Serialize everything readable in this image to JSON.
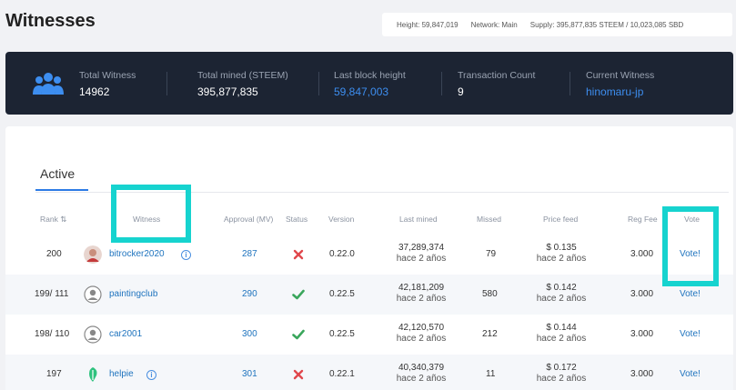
{
  "page_title": "Witnesses",
  "infobar": {
    "height": "Height: 59,847,019",
    "network": "Network: Main",
    "supply": "Supply: 395,877,835 STEEM / 10,023,085 SBD"
  },
  "stats": [
    {
      "label": "Total Witness",
      "value": "14962"
    },
    {
      "label": "Total mined (STEEM)",
      "value": "395,877,835"
    },
    {
      "label": "Last block height",
      "value": "59,847,003"
    },
    {
      "label": "Transaction Count",
      "value": "9"
    },
    {
      "label": "Current Witness",
      "value": "hinomaru-jp"
    }
  ],
  "tab_active": "Active",
  "headers": {
    "rank": "Rank ⇅",
    "witness": "Witness",
    "approval": "Approval (MV)",
    "status": "Status",
    "version": "Version",
    "last_mined": "Last mined",
    "missed": "Missed",
    "price_feed": "Price feed",
    "reg_fee": "Reg Fee",
    "vote": "Vote"
  },
  "rows": [
    {
      "rank": "200",
      "witness": "bitrocker2020",
      "approval": "287",
      "status": "error",
      "version": "0.22.0",
      "last_mined": "37,289,374",
      "last_mined_ago": "hace 2 años",
      "missed": "79",
      "price": "$ 0.135",
      "price_ago": "hace 2 años",
      "reg_fee": "3.000",
      "vote": "Vote!"
    },
    {
      "rank": "199/ 111",
      "witness": "paintingclub",
      "approval": "290",
      "status": "ok",
      "version": "0.22.5",
      "last_mined": "42,181,209",
      "last_mined_ago": "hace 2 años",
      "missed": "580",
      "price": "$ 0.142",
      "price_ago": "hace 2 años",
      "reg_fee": "3.000",
      "vote": "Vote!"
    },
    {
      "rank": "198/ 110",
      "witness": "car2001",
      "approval": "300",
      "status": "ok",
      "version": "0.22.5",
      "last_mined": "42,120,570",
      "last_mined_ago": "hace 2 años",
      "missed": "212",
      "price": "$ 0.144",
      "price_ago": "hace 2 años",
      "reg_fee": "3.000",
      "vote": "Vote!"
    },
    {
      "rank": "197",
      "witness": "helpie",
      "approval": "301",
      "status": "error",
      "version": "0.22.1",
      "last_mined": "40,340,379",
      "last_mined_ago": "hace 2 años",
      "missed": "11",
      "price": "$ 0.172",
      "price_ago": "hace 2 años",
      "reg_fee": "3.000",
      "vote": "Vote!"
    }
  ],
  "colors": {
    "accent": "#1e73be",
    "highlight": "#16d3cf",
    "ok": "#3aa65c",
    "error": "#e0474c"
  }
}
